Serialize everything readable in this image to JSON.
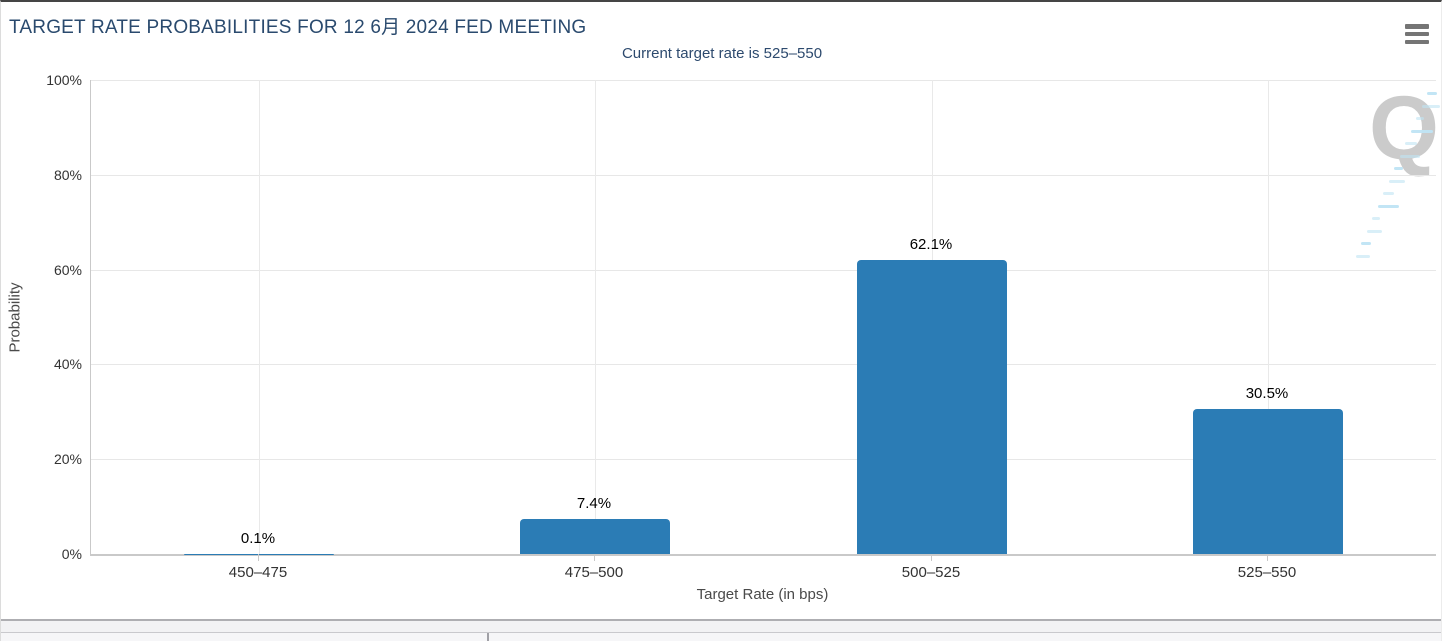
{
  "header": {
    "title": "TARGET RATE PROBABILITIES FOR 12 6月 2024 FED MEETING",
    "subtitle": "Current target rate is 525–550"
  },
  "watermark": {
    "letter": "Q"
  },
  "chart_data": {
    "type": "bar",
    "title": "TARGET RATE PROBABILITIES FOR 12 6月 2024 FED MEETING",
    "subtitle": "Current target rate is 525–550",
    "categories": [
      "450–475",
      "475–500",
      "500–525",
      "525–550"
    ],
    "values": [
      0.1,
      7.4,
      62.1,
      30.5
    ],
    "data_labels": [
      "0.1%",
      "7.4%",
      "62.1%",
      "30.5%"
    ],
    "xlabel": "Target Rate (in bps)",
    "ylabel": "Probability",
    "ylim": [
      0,
      100
    ],
    "yticks": [
      0,
      20,
      40,
      60,
      80,
      100
    ],
    "ytick_labels": [
      "0%",
      "20%",
      "40%",
      "60%",
      "80%",
      "100%"
    ],
    "bar_color": "#2b7cb5",
    "grid": true,
    "legend_position": "none"
  }
}
